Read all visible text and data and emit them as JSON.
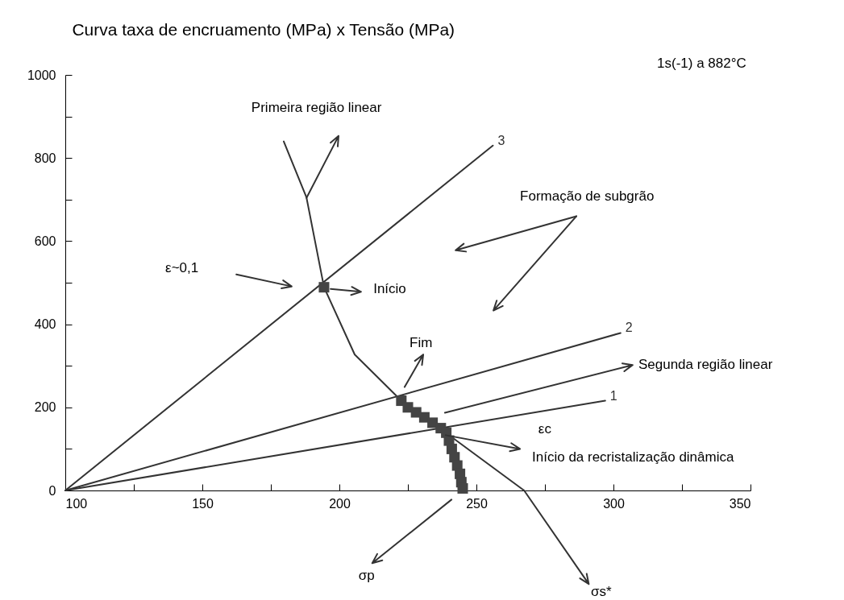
{
  "chart_data": {
    "type": "line",
    "title": "Curva taxa de encruamento (MPa) x Tensão (MPa)",
    "xlim": [
      100,
      350
    ],
    "ylim": [
      0,
      1000
    ],
    "xticks": [
      100,
      {
        "value": 125,
        "label": null
      },
      150,
      {
        "value": 175,
        "label": null
      },
      200,
      {
        "value": 225,
        "label": null
      },
      250,
      {
        "value": 275,
        "label": null
      },
      300,
      {
        "value": 325,
        "label": null
      },
      350
    ],
    "yticks": [
      0,
      {
        "value": 100,
        "label": null
      },
      200,
      {
        "value": 300,
        "label": null
      },
      400,
      {
        "value": 500,
        "label": null
      },
      600,
      {
        "value": 700,
        "label": null
      },
      800,
      {
        "value": 900,
        "label": null
      },
      1000
    ],
    "series": [
      {
        "name": "1",
        "color": "#333333",
        "x": [
          100,
          297
        ],
        "values": [
          0,
          216
        ]
      },
      {
        "name": "2",
        "color": "#333333",
        "x": [
          100,
          302.6
        ],
        "values": [
          0,
          379
        ]
      },
      {
        "name": "3",
        "color": "#333333",
        "x": [
          100,
          256
        ],
        "values": [
          0,
          830
        ]
      },
      {
        "color": "#333333",
        "x": [
          179.7,
          188,
          194.4,
          205.6,
          222.6,
          238.8,
          241.5,
          243.8,
          244.7
        ],
        "values": [
          840,
          705,
          489,
          327,
          216,
          139,
          88,
          36,
          3
        ]
      },
      {
        "color": "#333333",
        "x": [
          238.8,
          267.4
        ],
        "values": [
          139,
          0
        ]
      },
      {
        "color": "#444444",
        "type": "scatter",
        "marker": "square",
        "x": [
          194.4,
          222.6,
          225,
          228,
          231,
          234,
          237,
          239,
          240,
          241,
          242,
          243,
          244,
          244.5,
          245
        ],
        "values": [
          489,
          216,
          200,
          188,
          176,
          163,
          150,
          139,
          120,
          100,
          80,
          60,
          40,
          20,
          5
        ]
      }
    ],
    "annotations": [
      "1s(-1)  a 882°C",
      "Primeira região linear",
      "Formação de subgrão",
      "ε~0,1",
      "Início",
      "Fim",
      "Segunda região linear",
      "εc",
      "Início da recristalização dinâmica",
      "σp",
      "σs*"
    ]
  }
}
